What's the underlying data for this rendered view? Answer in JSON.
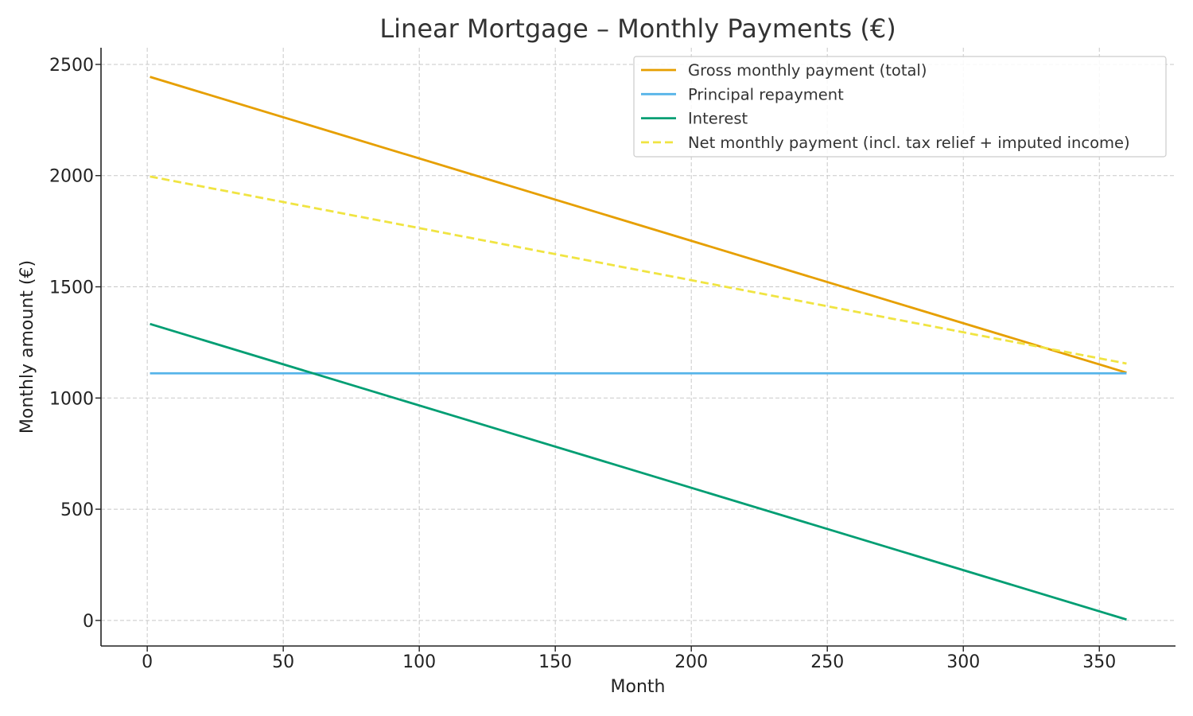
{
  "chart_data": {
    "type": "line",
    "title": "Linear Mortgage – Monthly Payments (€)",
    "xlabel": "Month",
    "ylabel": "Monthly amount (€)",
    "xlim": [
      -17,
      378
    ],
    "ylim": [
      -115,
      2575
    ],
    "xticks": [
      0,
      50,
      100,
      150,
      200,
      250,
      300,
      350
    ],
    "yticks": [
      0,
      500,
      1000,
      1500,
      2000,
      2500
    ],
    "grid": true,
    "legend_position": "top-right",
    "series": [
      {
        "name": "Gross monthly payment (total)",
        "color": "#E69F00",
        "dash": "solid",
        "x": [
          1,
          360
        ],
        "y": [
          2444,
          1114
        ]
      },
      {
        "name": "Principal repayment",
        "color": "#56B4E9",
        "dash": "solid",
        "x": [
          1,
          360
        ],
        "y": [
          1111,
          1111
        ]
      },
      {
        "name": "Interest",
        "color": "#009E73",
        "dash": "solid",
        "x": [
          1,
          360
        ],
        "y": [
          1333,
          4
        ]
      },
      {
        "name": "Net monthly payment (incl. tax relief + imputed income)",
        "color": "#F0E442",
        "dash": "dashed",
        "x": [
          1,
          360
        ],
        "y": [
          1996,
          1155
        ]
      }
    ]
  }
}
